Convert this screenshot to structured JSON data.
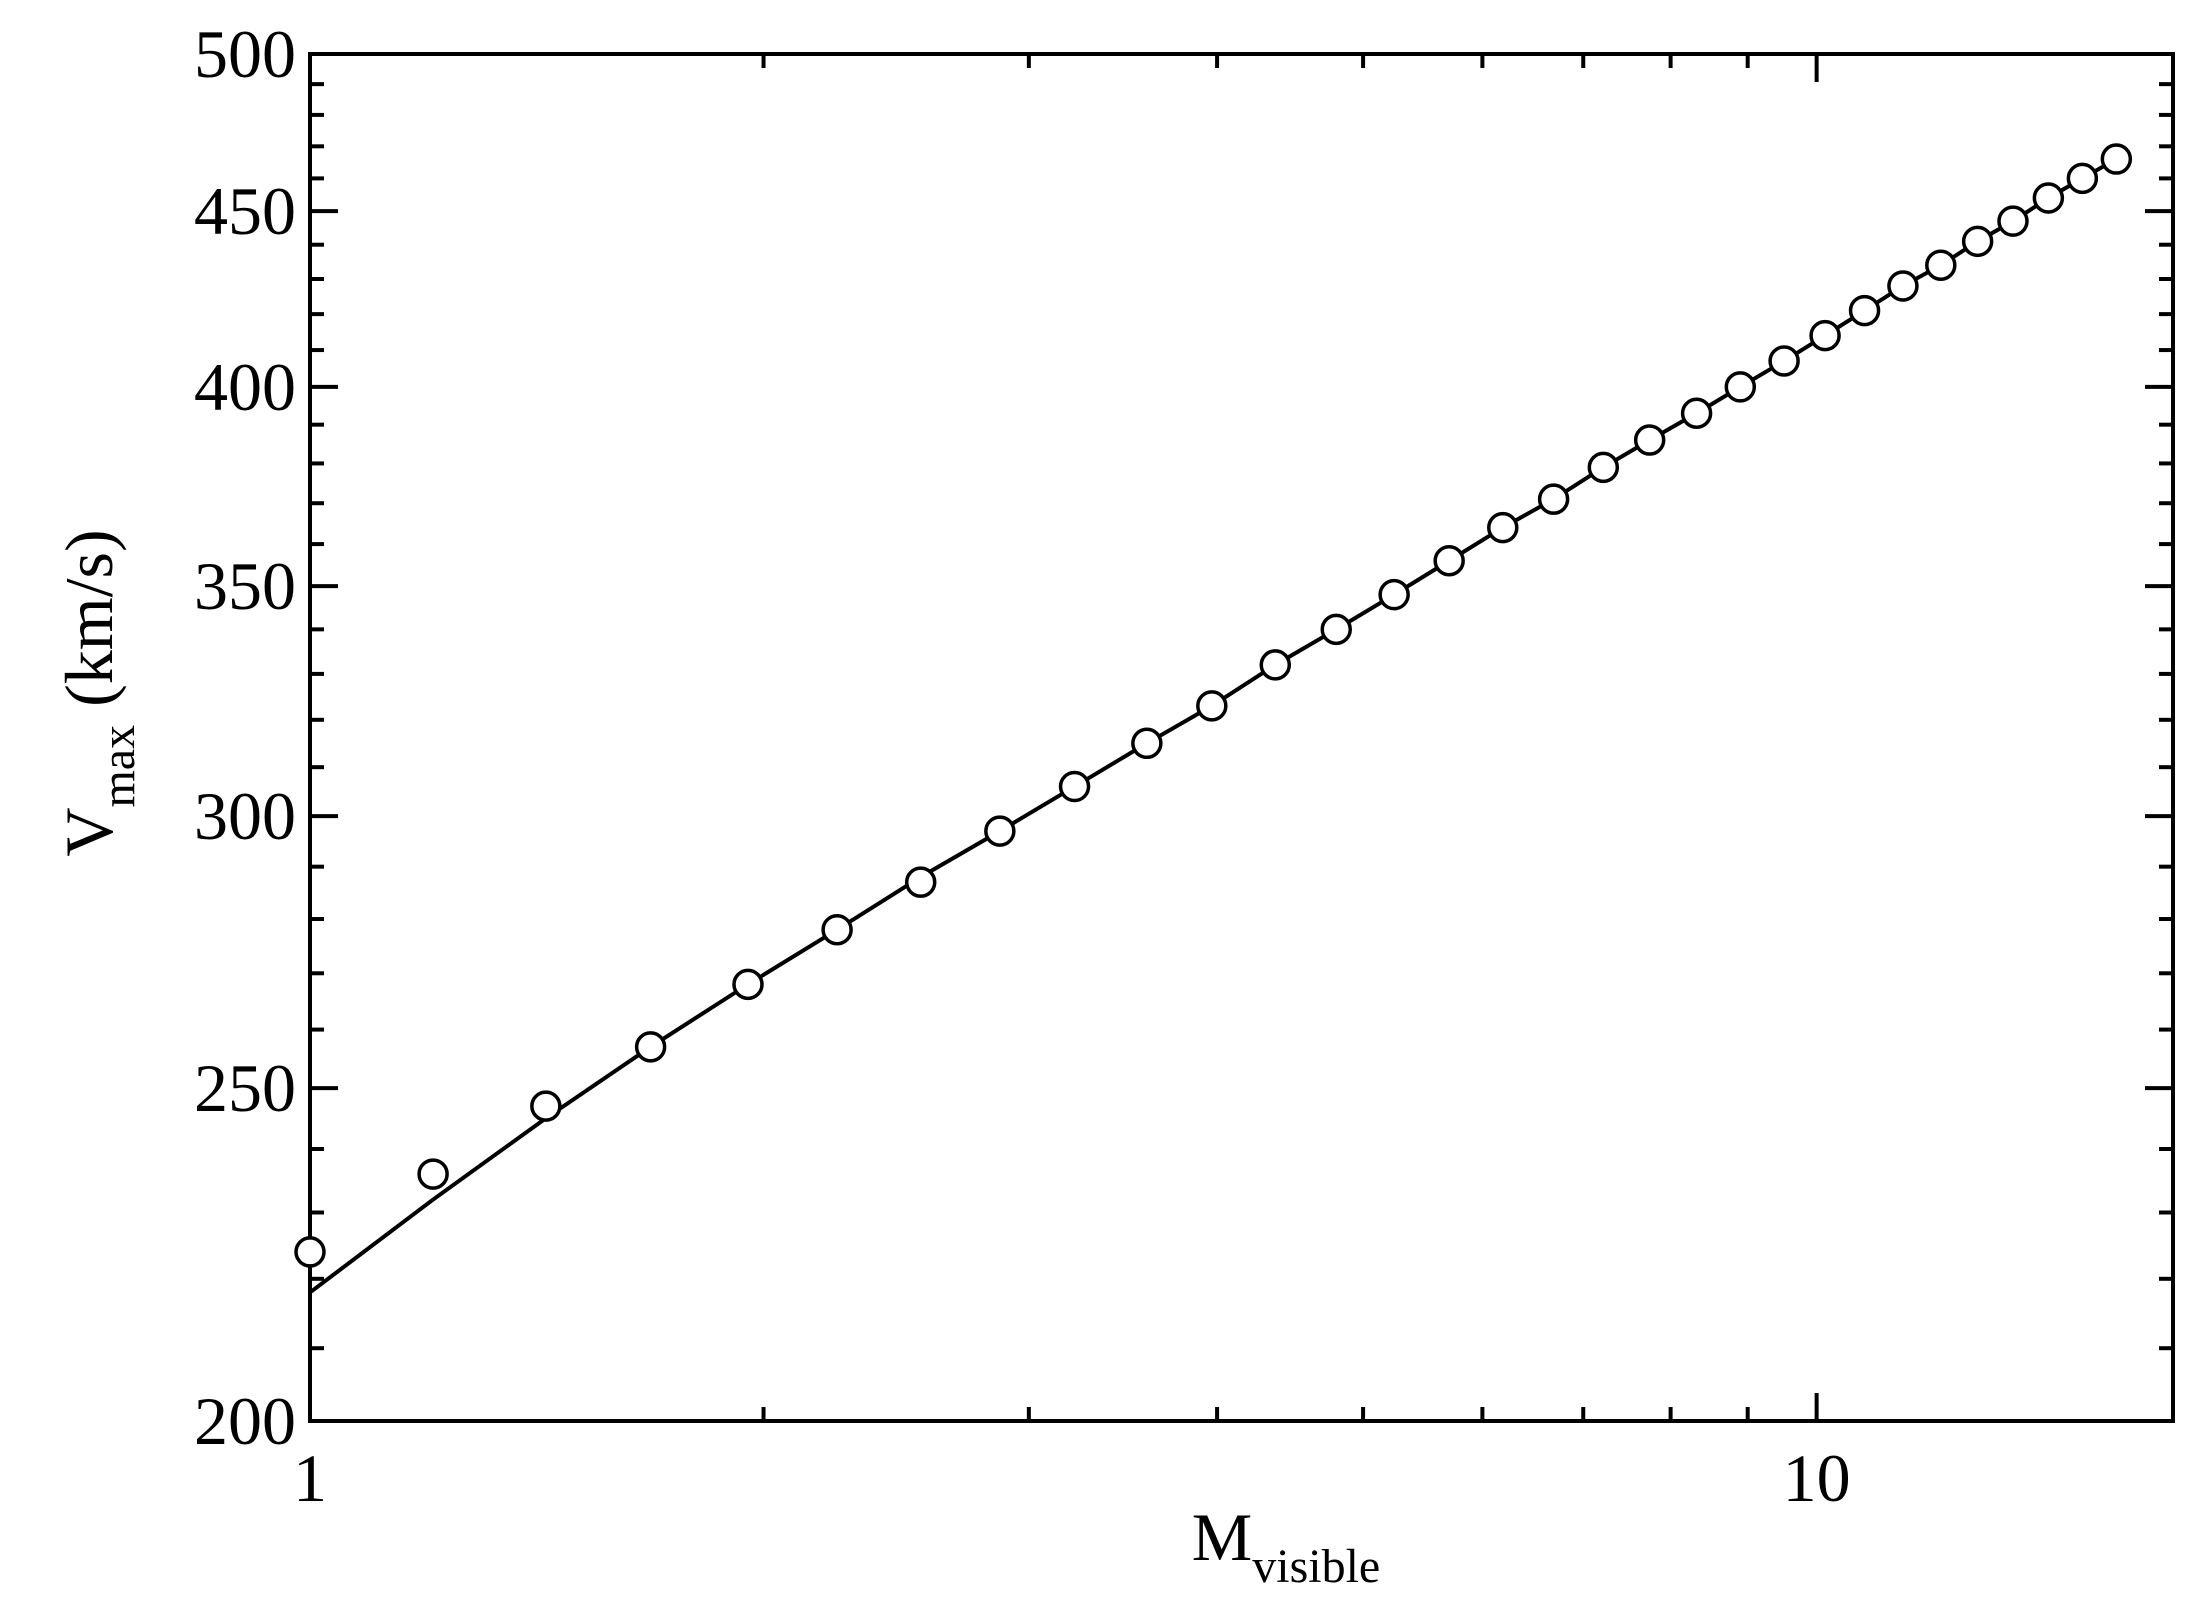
{
  "chart_data": {
    "type": "scatter",
    "xlabel": {
      "text": "M",
      "subscript": "visible"
    },
    "ylabel": {
      "text": "V",
      "subscript": "max",
      "unit": "(km/s)"
    },
    "xscale": "log",
    "yscale": "log",
    "xlim": [
      1,
      17.24
    ],
    "ylim": [
      200,
      500
    ],
    "xticks": [
      1,
      10
    ],
    "xminor_ticks": [
      2,
      3,
      4,
      5,
      6,
      7,
      8,
      9
    ],
    "yticks": [
      200,
      250,
      300,
      350,
      400,
      450,
      500
    ],
    "yminor_ticks": [
      210,
      220,
      230,
      240,
      260,
      270,
      280,
      290,
      310,
      320,
      330,
      340,
      360,
      370,
      380,
      390,
      410,
      420,
      430,
      440,
      460,
      470,
      480,
      490
    ],
    "x": [
      1.0,
      1.207,
      1.434,
      1.683,
      1.953,
      2.238,
      2.543,
      2.87,
      3.217,
      3.593,
      3.968,
      4.372,
      4.799,
      5.243,
      5.703,
      6.19,
      6.69,
      7.218,
      7.748,
      8.324,
      8.899,
      9.515,
      10.13,
      10.76,
      11.41,
      12.09,
      12.79,
      13.5,
      14.25,
      15.01,
      15.81
    ],
    "series": [
      {
        "kind": "markers",
        "color": "#000000",
        "values": [
          224,
          236,
          247,
          257,
          268,
          278,
          287,
          297,
          306,
          315,
          323,
          332,
          340,
          348,
          356,
          364,
          371,
          379,
          386,
          393,
          400,
          407,
          414,
          421,
          428,
          434,
          441,
          447,
          454,
          460,
          466
        ]
      },
      {
        "kind": "line",
        "color": "#000000",
        "values": [
          218,
          232,
          245,
          257,
          268,
          278,
          288,
          297,
          306,
          315,
          323,
          332,
          340,
          348,
          356,
          364,
          371,
          379,
          386,
          393,
          400,
          407,
          414,
          421,
          428,
          434,
          441,
          447,
          454,
          460,
          466
        ]
      }
    ]
  }
}
